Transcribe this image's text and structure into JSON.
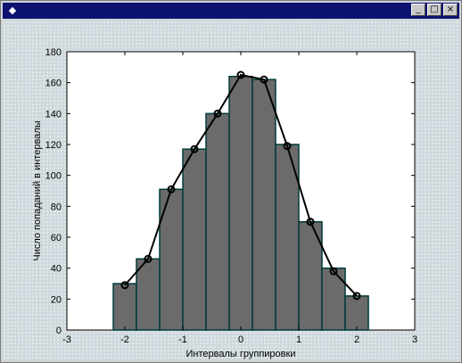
{
  "window": {
    "icon": "figure-icon",
    "controls": [
      "_",
      "□",
      "×"
    ]
  },
  "colors": {
    "title_bar": "#0c1270",
    "bar_fill": "#6b6b6b",
    "curve": "#000000",
    "axes_bg": "#ffffff"
  },
  "chart_data": {
    "type": "bar",
    "title": "",
    "xlabel": "Интервалы группировки",
    "ylabel": "Число попаданий в интервалы",
    "xlim": [
      -3,
      3
    ],
    "ylim": [
      0,
      180
    ],
    "xticks": [
      "-3",
      "-2",
      "-1",
      "0",
      "1",
      "2",
      "3"
    ],
    "yticks": [
      "0",
      "20",
      "40",
      "60",
      "80",
      "100",
      "120",
      "140",
      "160",
      "180"
    ],
    "grid": false,
    "bin_width": 0.4,
    "bars": {
      "centers": [
        -2.0,
        -1.6,
        -1.2,
        -0.8,
        -0.4,
        0.0,
        0.4,
        0.8,
        1.2,
        1.6,
        2.0
      ],
      "values": [
        30,
        46,
        91,
        117,
        140,
        164,
        162,
        120,
        70,
        40,
        22
      ]
    },
    "line": {
      "x": [
        -2.0,
        -1.6,
        -1.2,
        -0.8,
        -0.4,
        0.0,
        0.4,
        0.8,
        1.2,
        1.6,
        2.0
      ],
      "y": [
        29,
        46,
        91,
        117,
        140,
        165,
        162,
        119,
        70,
        38,
        22
      ],
      "marker": "circle"
    }
  }
}
